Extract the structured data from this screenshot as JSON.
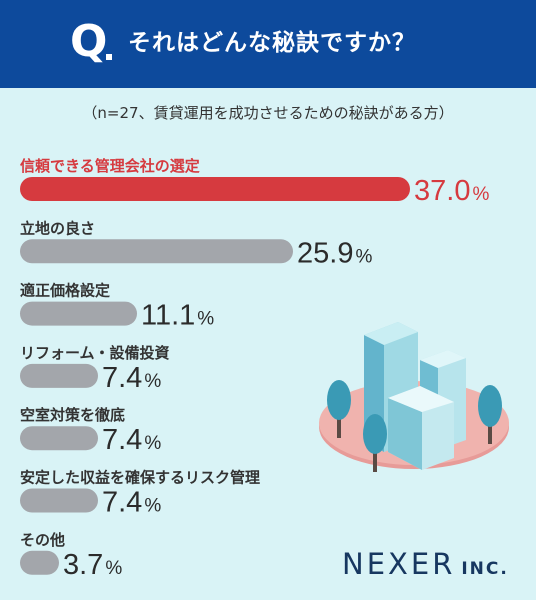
{
  "header": {
    "q": "Q",
    "question": "それはどんな秘訣ですか？"
  },
  "subtitle": "（n=27、賃貸運用を成功させるための秘訣がある方）",
  "chart_data": {
    "type": "bar",
    "orientation": "horizontal",
    "categories": [
      "信頼できる管理会社の選定",
      "立地の良さ",
      "適正価格設定",
      "リフォーム・設備投資",
      "空室対策を徹底",
      "安定した収益を確保するリスク管理",
      "その他"
    ],
    "values": [
      37.0,
      25.9,
      11.1,
      7.4,
      7.4,
      7.4,
      3.7
    ],
    "value_labels": [
      "37.0",
      "25.9",
      "11.1",
      "7.4",
      "7.4",
      "7.4",
      "3.7"
    ],
    "unit": "%",
    "highlight_index": 0,
    "title": "",
    "xlabel": "",
    "ylabel": "",
    "grid": false
  },
  "colors": {
    "header_bg": "#0d4a9c",
    "background": "#d9f3f6",
    "highlight_bar": "#d63a3f",
    "default_bar": "#a3a6ab",
    "highlight_text": "#d63a3f",
    "text": "#333333"
  },
  "illustration": "city-buildings-icon",
  "brand": {
    "name": "NEXER",
    "suffix": "INC."
  }
}
